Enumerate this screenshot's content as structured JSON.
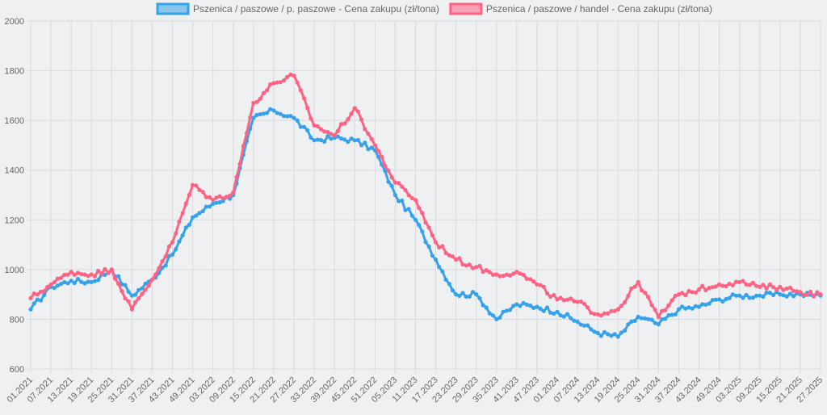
{
  "chart_data": {
    "type": "line",
    "title": "",
    "xlabel": "",
    "ylabel": "",
    "ylim": [
      600,
      2000
    ],
    "yticks": [
      600,
      800,
      1000,
      1200,
      1400,
      1600,
      1800,
      2000
    ],
    "grid": true,
    "legend_position": "top-center",
    "categories": [
      "01.2021",
      "07.2021",
      "13.2021",
      "19.2021",
      "25.2021",
      "31.2021",
      "37.2021",
      "43.2021",
      "49.2021",
      "03.2022",
      "09.2022",
      "15.2022",
      "21.2022",
      "27.2022",
      "33.2022",
      "39.2022",
      "45.2022",
      "51.2022",
      "05.2023",
      "11.2023",
      "17.2023",
      "23.2023",
      "29.2023",
      "35.2023",
      "41.2023",
      "47.2023",
      "01.2024",
      "07.2024",
      "13.2024",
      "19.2024",
      "25.2024",
      "31.2024",
      "37.2024",
      "43.2024",
      "49.2024",
      "03.2025",
      "09.2025",
      "15.2025",
      "21.2025",
      "27.2025"
    ],
    "series": [
      {
        "name": "Pszenica / paszowe / p. paszowe - Cena zakupu (zł/tona)",
        "color": "#36a2eb",
        "values": [
          840,
          930,
          955,
          950,
          1000,
          895,
          960,
          1060,
          1210,
          1265,
          1300,
          1610,
          1640,
          1610,
          1520,
          1530,
          1520,
          1480,
          1300,
          1200,
          1040,
          900,
          900,
          800,
          860,
          850,
          830,
          790,
          745,
          730,
          810,
          780,
          840,
          850,
          880,
          895,
          895,
          900,
          900,
          895
        ]
      },
      {
        "name": "Pszenica / paszowe / handel - Cena zakupu (zł/tona)",
        "color": "#ff6384",
        "values": [
          885,
          940,
          990,
          980,
          1000,
          840,
          960,
          1110,
          1340,
          1280,
          1310,
          1670,
          1750,
          1780,
          1580,
          1540,
          1650,
          1500,
          1350,
          1280,
          1110,
          1040,
          1010,
          980,
          990,
          940,
          880,
          870,
          820,
          840,
          950,
          810,
          900,
          920,
          940,
          950,
          930,
          930,
          910,
          900
        ]
      }
    ]
  }
}
